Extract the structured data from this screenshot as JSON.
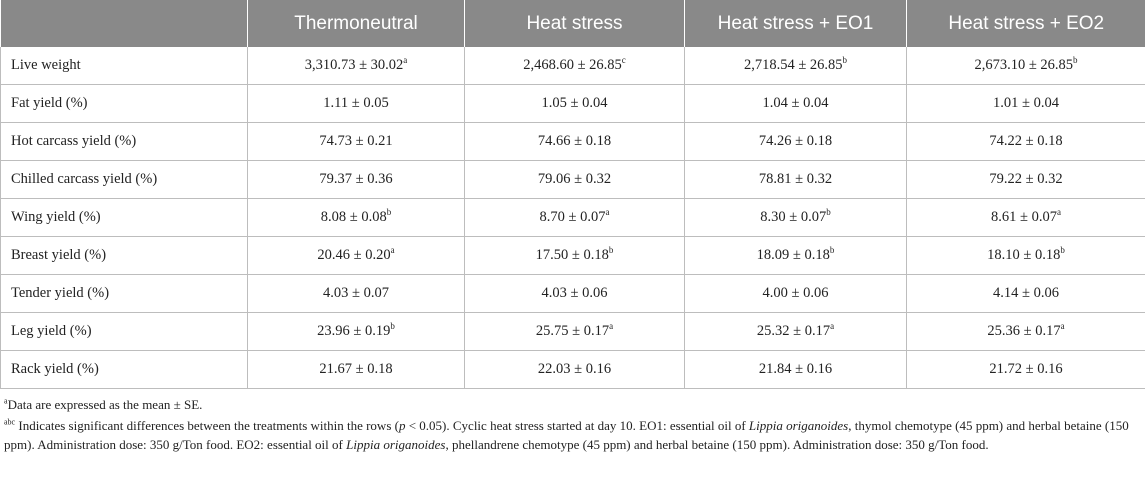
{
  "table": {
    "headers": [
      "",
      "Thermoneutral",
      "Heat stress",
      "Heat stress + EO1",
      "Heat stress + EO2"
    ],
    "rows": [
      {
        "label": "Live weight",
        "cells": [
          {
            "value": "3,310.73 ± 30.02",
            "sup": "a"
          },
          {
            "value": "2,468.60 ± 26.85",
            "sup": "c"
          },
          {
            "value": "2,718.54 ± 26.85",
            "sup": "b"
          },
          {
            "value": "2,673.10 ± 26.85",
            "sup": "b"
          }
        ]
      },
      {
        "label": "Fat yield (%)",
        "cells": [
          {
            "value": "1.11 ± 0.05",
            "sup": ""
          },
          {
            "value": "1.05 ± 0.04",
            "sup": ""
          },
          {
            "value": "1.04 ± 0.04",
            "sup": ""
          },
          {
            "value": "1.01 ± 0.04",
            "sup": ""
          }
        ]
      },
      {
        "label": "Hot carcass yield (%)",
        "cells": [
          {
            "value": "74.73 ± 0.21",
            "sup": ""
          },
          {
            "value": "74.66 ± 0.18",
            "sup": ""
          },
          {
            "value": "74.26 ± 0.18",
            "sup": ""
          },
          {
            "value": "74.22 ± 0.18",
            "sup": ""
          }
        ]
      },
      {
        "label": "Chilled carcass yield (%)",
        "cells": [
          {
            "value": "79.37 ± 0.36",
            "sup": ""
          },
          {
            "value": "79.06 ± 0.32",
            "sup": ""
          },
          {
            "value": "78.81 ± 0.32",
            "sup": ""
          },
          {
            "value": "79.22 ± 0.32",
            "sup": ""
          }
        ]
      },
      {
        "label": "Wing yield (%)",
        "cells": [
          {
            "value": "8.08 ± 0.08",
            "sup": "b"
          },
          {
            "value": "8.70 ± 0.07",
            "sup": "a"
          },
          {
            "value": "8.30 ± 0.07",
            "sup": "b"
          },
          {
            "value": "8.61 ± 0.07",
            "sup": "a"
          }
        ]
      },
      {
        "label": "Breast yield (%)",
        "cells": [
          {
            "value": "20.46 ± 0.20",
            "sup": "a"
          },
          {
            "value": "17.50 ± 0.18",
            "sup": "b"
          },
          {
            "value": "18.09 ± 0.18",
            "sup": "b"
          },
          {
            "value": "18.10 ± 0.18",
            "sup": "b"
          }
        ]
      },
      {
        "label": "Tender yield (%)",
        "cells": [
          {
            "value": "4.03 ± 0.07",
            "sup": ""
          },
          {
            "value": "4.03 ± 0.06",
            "sup": ""
          },
          {
            "value": "4.00 ± 0.06",
            "sup": ""
          },
          {
            "value": "4.14 ± 0.06",
            "sup": ""
          }
        ]
      },
      {
        "label": "Leg yield (%)",
        "cells": [
          {
            "value": "23.96 ± 0.19",
            "sup": "b"
          },
          {
            "value": "25.75 ± 0.17",
            "sup": "a"
          },
          {
            "value": "25.32 ± 0.17",
            "sup": "a"
          },
          {
            "value": "25.36 ± 0.17",
            "sup": "a"
          }
        ]
      },
      {
        "label": "Rack yield (%)",
        "cells": [
          {
            "value": "21.67 ± 0.18",
            "sup": ""
          },
          {
            "value": "22.03 ± 0.16",
            "sup": ""
          },
          {
            "value": "21.84 ± 0.16",
            "sup": ""
          },
          {
            "value": "21.72 ± 0.16",
            "sup": ""
          }
        ]
      }
    ]
  },
  "footnotes": {
    "note1": {
      "sup": "a",
      "text": "Data are expressed as the mean ± SE."
    },
    "note2": {
      "sup": "abc",
      "part1": " Indicates significant differences between the treatments within the rows (",
      "p_symbol": "p",
      "part2": " < 0.05). Cyclic heat stress started at day 10. EO1: essential oil of ",
      "species1": "Lippia origanoides",
      "part3": ", thymol chemotype (45 ppm) and herbal betaine (150 ppm). Administration dose: 350 g/Ton food. EO2: essential oil of ",
      "species2": "Lippia origanoides",
      "part4": ", phellandrene chemotype (45 ppm) and herbal betaine (150 ppm). Administration dose: 350 g/Ton food."
    }
  }
}
